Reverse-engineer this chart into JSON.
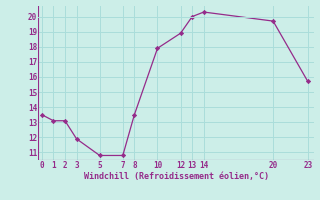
{
  "x": [
    0,
    1,
    2,
    3,
    5,
    7,
    8,
    10,
    12,
    13,
    14,
    20,
    23
  ],
  "y": [
    13.5,
    13.1,
    13.1,
    11.9,
    10.8,
    10.8,
    13.5,
    17.9,
    18.9,
    20.0,
    20.3,
    19.7,
    15.7
  ],
  "xlim": [
    -0.3,
    23.5
  ],
  "ylim": [
    10.5,
    20.7
  ],
  "xticks": [
    0,
    1,
    2,
    3,
    5,
    7,
    8,
    10,
    12,
    13,
    14,
    20,
    23
  ],
  "yticks": [
    11,
    12,
    13,
    14,
    15,
    16,
    17,
    18,
    19,
    20
  ],
  "xlabel": "Windchill (Refroidissement éolien,°C)",
  "line_color": "#952b8a",
  "marker_color": "#952b8a",
  "bg_color": "#cceee8",
  "grid_color": "#aaddda",
  "tick_fontsize": 5.5,
  "label_fontsize": 6.0
}
